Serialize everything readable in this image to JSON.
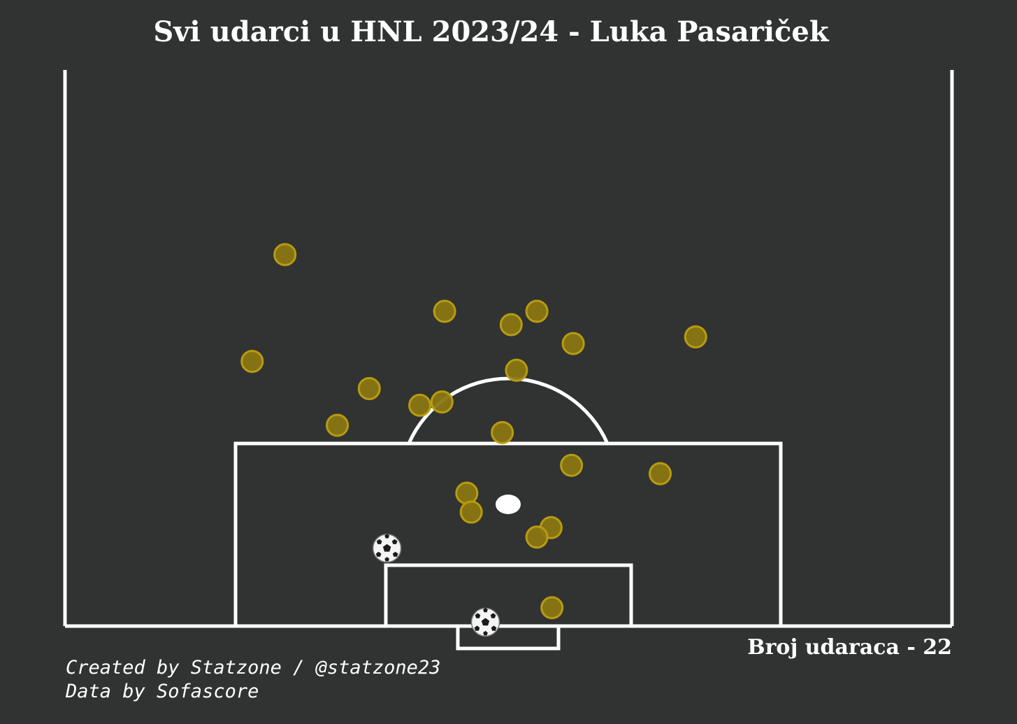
{
  "header": {
    "title": "Svi udarci u HNL 2023/24 - Luka Pasariček"
  },
  "footer": {
    "count_label": "Broj udaraca - 22",
    "credit_line1": "Created by Statzone / @statzone23",
    "credit_line2": "Data by Sofascore"
  },
  "colors": {
    "background": "#313332",
    "lines": "#ffffff",
    "shot_fill": "#8a7612",
    "shot_stroke": "#b89c10"
  },
  "chart_data": {
    "type": "scatter",
    "title": "Svi udarci u HNL 2023/24 - Luka Pasariček",
    "pitch": "half-pitch, attacking goal at bottom",
    "axes_units": "pitch distance (0-100)",
    "shots": [
      {
        "x": 24.8,
        "y": 66.8,
        "outcome": "miss"
      },
      {
        "x": 42.8,
        "y": 56.6,
        "outcome": "miss"
      },
      {
        "x": 50.3,
        "y": 54.2,
        "outcome": "miss"
      },
      {
        "x": 53.2,
        "y": 56.6,
        "outcome": "miss"
      },
      {
        "x": 57.3,
        "y": 50.8,
        "outcome": "miss"
      },
      {
        "x": 71.1,
        "y": 52.0,
        "outcome": "miss"
      },
      {
        "x": 21.1,
        "y": 47.6,
        "outcome": "miss"
      },
      {
        "x": 34.3,
        "y": 42.7,
        "outcome": "miss"
      },
      {
        "x": 50.9,
        "y": 46.0,
        "outcome": "miss"
      },
      {
        "x": 40.0,
        "y": 39.7,
        "outcome": "miss"
      },
      {
        "x": 42.5,
        "y": 40.3,
        "outcome": "miss"
      },
      {
        "x": 30.7,
        "y": 36.1,
        "outcome": "miss"
      },
      {
        "x": 49.3,
        "y": 34.8,
        "outcome": "miss"
      },
      {
        "x": 57.1,
        "y": 28.9,
        "outcome": "miss"
      },
      {
        "x": 67.1,
        "y": 27.4,
        "outcome": "miss"
      },
      {
        "x": 45.3,
        "y": 23.9,
        "outcome": "miss"
      },
      {
        "x": 45.8,
        "y": 20.5,
        "outcome": "miss"
      },
      {
        "x": 54.8,
        "y": 17.7,
        "outcome": "miss"
      },
      {
        "x": 53.2,
        "y": 16.0,
        "outcome": "miss"
      },
      {
        "x": 54.9,
        "y": 3.3,
        "outcome": "miss"
      },
      {
        "x": 36.3,
        "y": 14.0,
        "outcome": "goal"
      },
      {
        "x": 47.4,
        "y": 0.7,
        "outcome": "goal"
      }
    ]
  }
}
